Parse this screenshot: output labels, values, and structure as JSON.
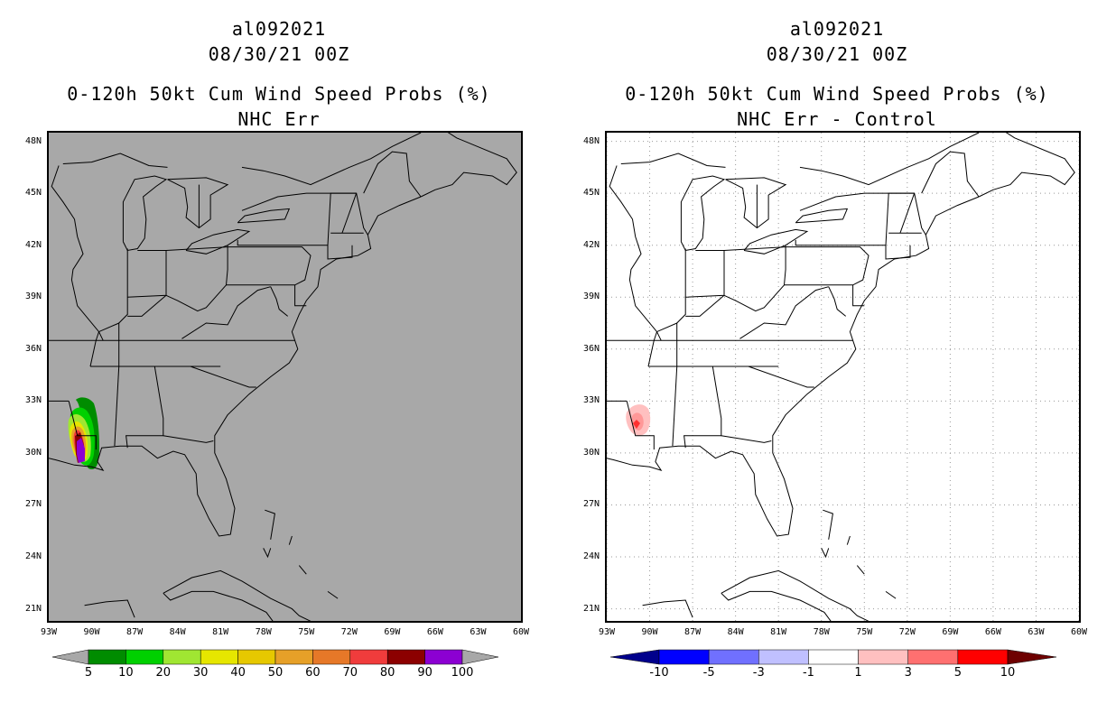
{
  "panels": [
    {
      "storm": "al092021",
      "datetime": "08/30/21 00Z",
      "product": "0-120h 50kt Cum Wind Speed Probs (%)",
      "subtitle": "NHC Err",
      "map_background": "#a8a8a8",
      "colorbar": {
        "labels": [
          "5",
          "10",
          "20",
          "30",
          "40",
          "50",
          "60",
          "70",
          "80",
          "90",
          "100"
        ],
        "colors": [
          "#008c00",
          "#00d000",
          "#a0e632",
          "#e6e600",
          "#e6c800",
          "#e6a028",
          "#e67828",
          "#f03c3c",
          "#8c0000",
          "#8c00d2"
        ],
        "under_color": "#a8a8a8",
        "over_color": "#a8a8a8"
      }
    },
    {
      "storm": "al092021",
      "datetime": "08/30/21 00Z",
      "product": "0-120h 50kt Cum Wind Speed Probs (%)",
      "subtitle": "NHC Err - Control",
      "map_background": "#ffffff",
      "colorbar": {
        "labels": [
          "-10",
          "-5",
          "-3",
          "-1",
          "1",
          "3",
          "5",
          "10"
        ],
        "colors": [
          "#0000ff",
          "#7070ff",
          "#c0c0ff",
          "#ffffff",
          "#ffc0c0",
          "#ff7070",
          "#ff0000"
        ],
        "under_color": "#00008c",
        "over_color": "#6e0000"
      }
    }
  ],
  "axes": {
    "lat_labels": [
      "48N",
      "45N",
      "42N",
      "39N",
      "36N",
      "33N",
      "30N",
      "27N",
      "24N",
      "21N"
    ],
    "lat_values": [
      48,
      45,
      42,
      39,
      36,
      33,
      30,
      27,
      24,
      21
    ],
    "lon_labels": [
      "93W",
      "90W",
      "87W",
      "84W",
      "81W",
      "78W",
      "75W",
      "72W",
      "69W",
      "66W",
      "63W",
      "60W"
    ],
    "lon_values": [
      -93,
      -90,
      -87,
      -84,
      -81,
      -78,
      -75,
      -72,
      -69,
      -66,
      -63,
      -60
    ],
    "lat_range": [
      20.3,
      48.5
    ],
    "lon_range": [
      -93,
      -60
    ]
  }
}
